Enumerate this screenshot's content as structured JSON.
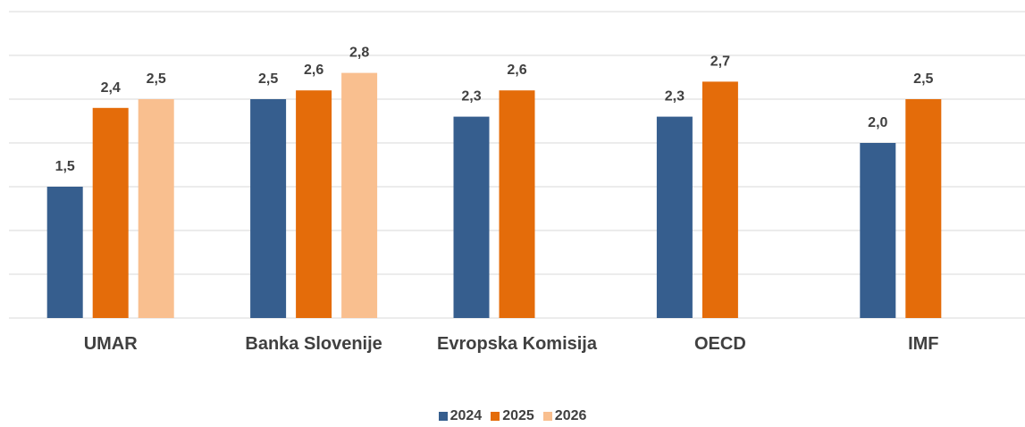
{
  "chart_data": {
    "type": "bar",
    "categories": [
      "UMAR",
      "Banka Slovenije",
      "Evropska Komisija",
      "OECD",
      "IMF"
    ],
    "series": [
      {
        "name": "2024",
        "color": "#365e8e",
        "values": [
          1.5,
          2.5,
          2.3,
          2.3,
          2.0
        ],
        "value_labels": [
          "1,5",
          "2,5",
          "2,3",
          "2,3",
          "2,0"
        ]
      },
      {
        "name": "2025",
        "color": "#e46c0a",
        "values": [
          2.4,
          2.6,
          2.6,
          2.7,
          2.5
        ],
        "value_labels": [
          "2,4",
          "2,6",
          "2,6",
          "2,7",
          "2,5"
        ]
      },
      {
        "name": "2026",
        "color": "#f9bf8f",
        "values": [
          2.5,
          2.8,
          null,
          null,
          null
        ],
        "value_labels": [
          "2,5",
          "2,8",
          null,
          null,
          null
        ]
      }
    ],
    "ylim": [
      0,
      3.5
    ],
    "yticks": [
      0,
      0.5,
      1,
      1.5,
      2,
      2.5,
      3,
      3.5
    ],
    "grid": true,
    "legend": "bottom"
  }
}
